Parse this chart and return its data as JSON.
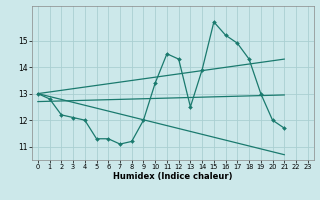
{
  "title": "",
  "xlabel": "Humidex (Indice chaleur)",
  "ylabel": "",
  "bg_color": "#cce8ea",
  "grid_color": "#aacfd2",
  "line_color": "#1a7a6e",
  "xlim": [
    -0.5,
    23.5
  ],
  "ylim": [
    10.5,
    16.3
  ],
  "yticks": [
    11,
    12,
    13,
    14,
    15
  ],
  "xticks": [
    0,
    1,
    2,
    3,
    4,
    5,
    6,
    7,
    8,
    9,
    10,
    11,
    12,
    13,
    14,
    15,
    16,
    17,
    18,
    19,
    20,
    21,
    22,
    23
  ],
  "series": [
    {
      "x": [
        0,
        1,
        2,
        3,
        4,
        5,
        6,
        7,
        8,
        9,
        10,
        11,
        12,
        13,
        14,
        15,
        16,
        17,
        18,
        19,
        20,
        21
      ],
      "y": [
        13.0,
        12.8,
        12.2,
        12.1,
        12.0,
        11.3,
        11.3,
        11.1,
        11.2,
        12.0,
        13.4,
        14.5,
        14.3,
        12.5,
        13.9,
        15.7,
        15.2,
        14.9,
        14.3,
        13.0,
        12.0,
        11.7
      ],
      "marker": "D",
      "markersize": 2.0,
      "linewidth": 0.9
    },
    {
      "x": [
        0,
        21
      ],
      "y": [
        13.0,
        10.7
      ],
      "marker": null,
      "markersize": 0,
      "linewidth": 0.9
    },
    {
      "x": [
        0,
        21
      ],
      "y": [
        13.0,
        14.3
      ],
      "marker": null,
      "markersize": 0,
      "linewidth": 0.9
    },
    {
      "x": [
        0,
        21
      ],
      "y": [
        12.7,
        12.95
      ],
      "marker": null,
      "markersize": 0,
      "linewidth": 0.9
    }
  ]
}
